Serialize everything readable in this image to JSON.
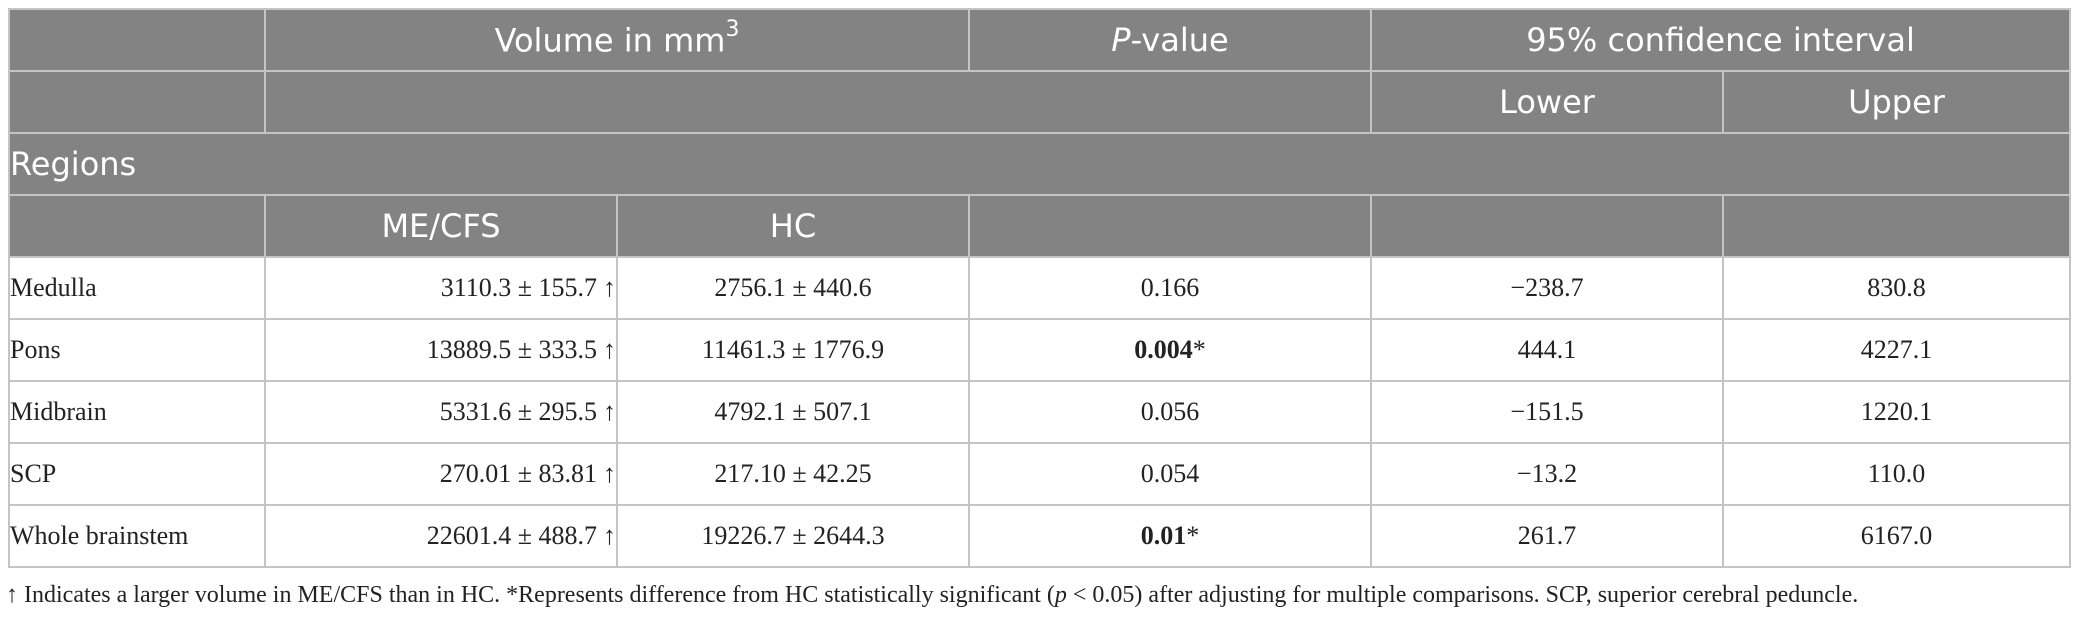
{
  "table": {
    "header": {
      "volume_label": "Volume in mm",
      "volume_unit_sup": "3",
      "p_value_italic": "P",
      "p_value_rest": "-value",
      "ci_label": "95% confidence interval",
      "lower_label": "Lower",
      "upper_label": "Upper",
      "regions_label": "Regions",
      "mecfs_label": "ME/CFS",
      "hc_label": "HC"
    },
    "rows": [
      {
        "region": "Medulla",
        "mecfs": "3110.3 ± 155.7",
        "mecfs_arrow": "↑",
        "hc": "2756.1 ± 440.6",
        "p_value": "0.166",
        "p_bold": false,
        "p_star": "",
        "lower": "−238.7",
        "upper": "830.8"
      },
      {
        "region": "Pons",
        "mecfs": "13889.5 ± 333.5",
        "mecfs_arrow": "↑",
        "hc": "11461.3 ± 1776.9",
        "p_value": "0.004",
        "p_bold": true,
        "p_star": "*",
        "lower": "444.1",
        "upper": "4227.1"
      },
      {
        "region": "Midbrain",
        "mecfs": "5331.6 ± 295.5",
        "mecfs_arrow": "↑",
        "hc": "4792.1 ± 507.1",
        "p_value": "0.056",
        "p_bold": false,
        "p_star": "",
        "lower": "−151.5",
        "upper": "1220.1"
      },
      {
        "region": "SCP",
        "mecfs": "270.01 ± 83.81",
        "mecfs_arrow": "↑",
        "hc": "217.10 ± 42.25",
        "p_value": "0.054",
        "p_bold": false,
        "p_star": "",
        "lower": "−13.2",
        "upper": "110.0"
      },
      {
        "region": "Whole brainstem",
        "mecfs": "22601.4 ± 488.7",
        "mecfs_arrow": "↑",
        "hc": "19226.7 ± 2644.3",
        "p_value": "0.01",
        "p_bold": true,
        "p_star": "*",
        "lower": "261.7",
        "upper": "6167.0"
      }
    ]
  },
  "footnote": {
    "part1": "↑ Indicates a larger volume in ME/CFS than in HC. *Represents difference from HC statistically significant (",
    "p_italic": "p",
    "part2": " < 0.05) after adjusting for multiple comparisons. SCP, superior cerebral peduncle."
  },
  "colors": {
    "header_bg": "#838383",
    "header_text": "#ffffff",
    "grid": "#c4c4c4"
  }
}
